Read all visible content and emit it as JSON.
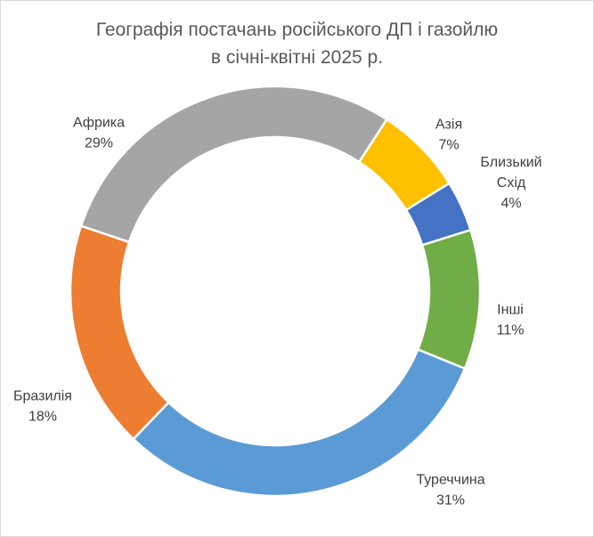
{
  "chart_data": {
    "type": "pie",
    "style": "donut",
    "title": "Географія постачань російського ДП і газойлю в січні-квітні 2025 р.",
    "title_lines": [
      "Географія постачань російського ДП і газойлю",
      "в січні-квітні 2025 р."
    ],
    "legend": "none",
    "slices": [
      {
        "name": "Азія",
        "value": 7,
        "label_lines": [
          "Азія"
        ],
        "pct_label": "7%",
        "color": "#FFC000"
      },
      {
        "name": "Близький Схід",
        "value": 4,
        "label_lines": [
          "Близький",
          "Схід"
        ],
        "pct_label": "4%",
        "color": "#4472C4"
      },
      {
        "name": "Інші",
        "value": 11,
        "label_lines": [
          "Інші"
        ],
        "pct_label": "11%",
        "color": "#70AD47"
      },
      {
        "name": "Туреччина",
        "value": 31,
        "label_lines": [
          "Туреччина"
        ],
        "pct_label": "31%",
        "color": "#5B9BD5"
      },
      {
        "name": "Бразилія",
        "value": 18,
        "label_lines": [
          "Бразилія"
        ],
        "pct_label": "18%",
        "color": "#ED7D31"
      },
      {
        "name": "Африка",
        "value": 29,
        "label_lines": [
          "Африка"
        ],
        "pct_label": "29%",
        "color": "#A5A5A5"
      }
    ]
  }
}
